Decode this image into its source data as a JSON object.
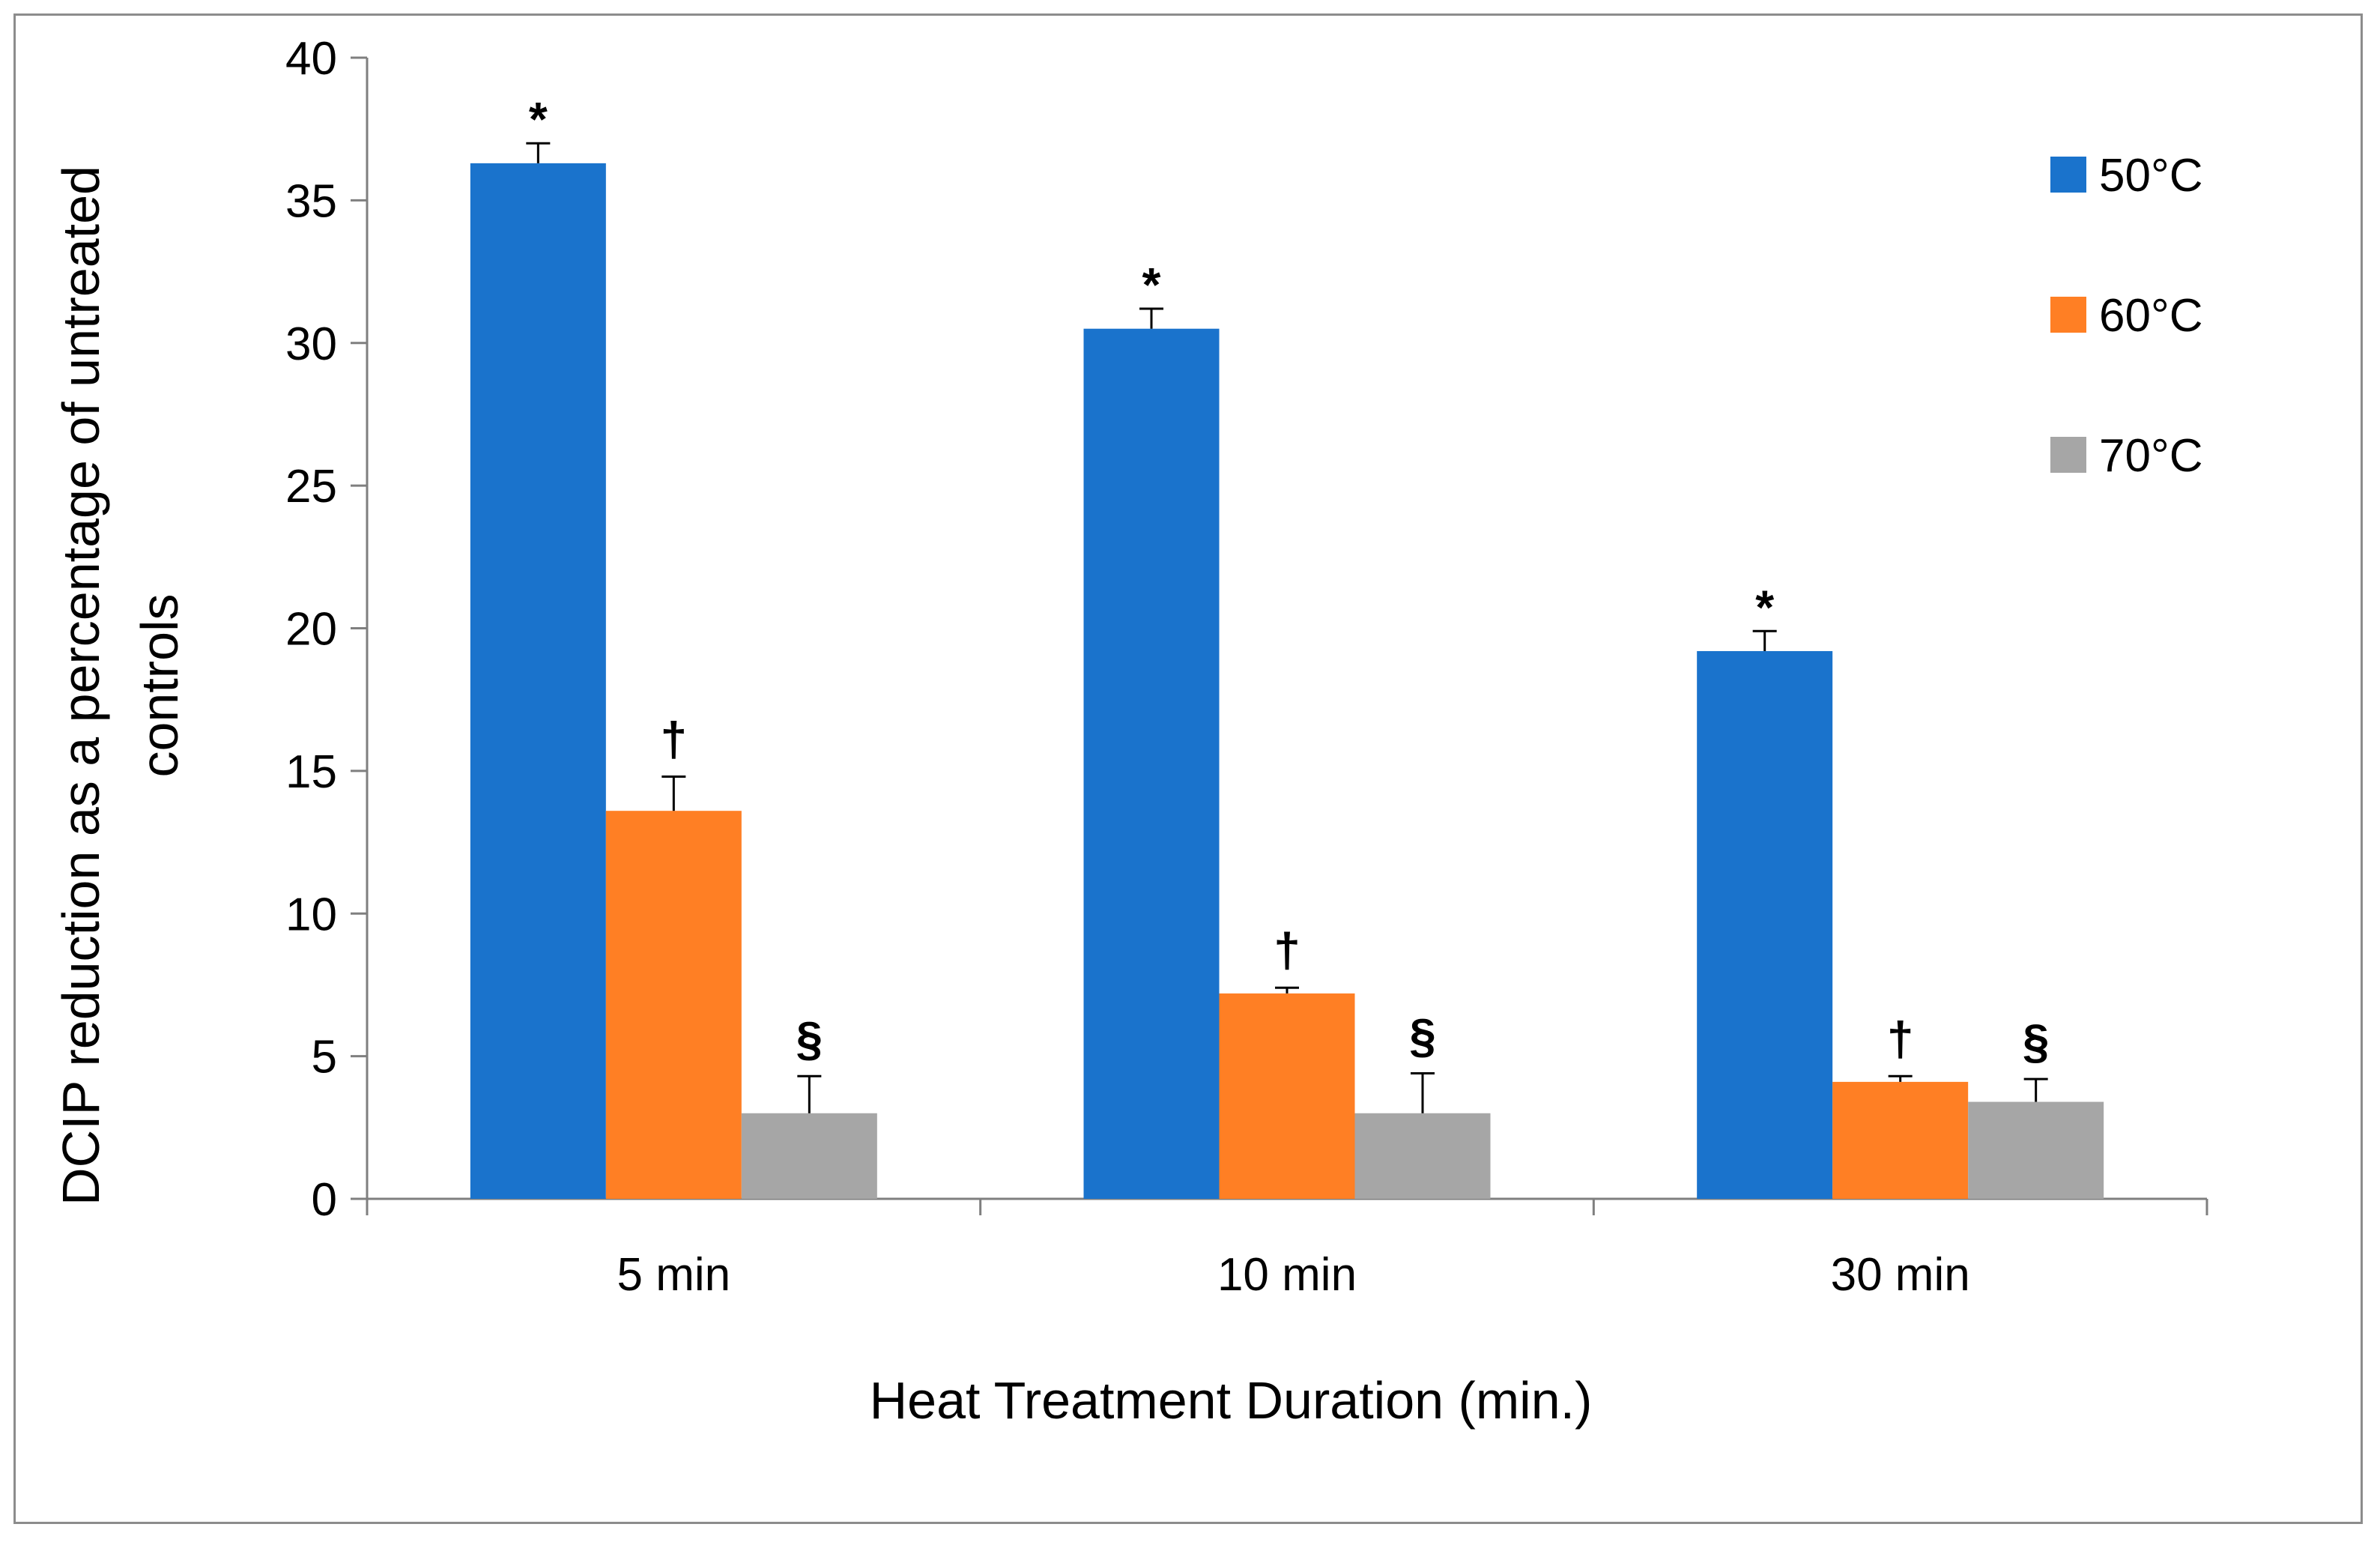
{
  "chart_data": {
    "type": "bar",
    "title": "",
    "xlabel": "Heat Treatment Duration (min.)",
    "ylabel_line1": "DCIP reduction as a percentage of untreated",
    "ylabel_line2": "controls",
    "categories": [
      "5 min",
      "10 min",
      "30 min"
    ],
    "ylim": [
      0,
      40
    ],
    "yticks": [
      0,
      5,
      10,
      15,
      20,
      25,
      30,
      35,
      40
    ],
    "grid": false,
    "legend_position": "top-right",
    "series": [
      {
        "name": "50°C",
        "color": "#1a73cc",
        "values": [
          36.3,
          30.5,
          19.2
        ],
        "errors": [
          0.7,
          0.7,
          0.7
        ],
        "marks": [
          "*",
          "*",
          "*"
        ]
      },
      {
        "name": "60°C",
        "color": "#ff7f24",
        "values": [
          13.6,
          7.2,
          4.1
        ],
        "errors": [
          1.2,
          0.2,
          0.2
        ],
        "marks": [
          "†",
          "†",
          "†"
        ]
      },
      {
        "name": "70°C",
        "color": "#a6a6a6",
        "values": [
          3.0,
          3.0,
          3.4
        ],
        "errors": [
          1.3,
          1.4,
          0.8
        ],
        "marks": [
          "§",
          "§",
          "§"
        ]
      }
    ]
  }
}
